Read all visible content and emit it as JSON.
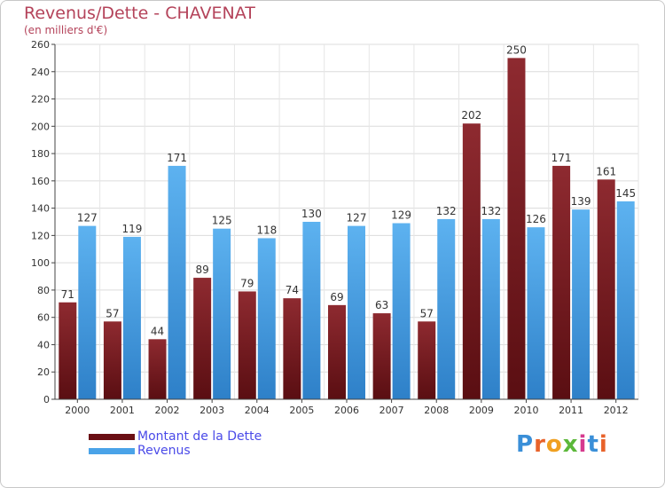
{
  "title": "Revenus/Dette - CHAVENAT",
  "subtitle": "(en milliers d'€)",
  "logo_text": "Proxiti",
  "legend": [
    {
      "name": "Montant de la Dette",
      "color": "#7a1a1e"
    },
    {
      "name": "Revenus",
      "color": "#4aa3e8"
    }
  ],
  "chart_data": {
    "type": "bar",
    "title": "Revenus/Dette - CHAVENAT",
    "subtitle": "(en milliers d'€)",
    "categories": [
      "2000",
      "2001",
      "2002",
      "2003",
      "2004",
      "2005",
      "2006",
      "2007",
      "2008",
      "2009",
      "2010",
      "2011",
      "2012"
    ],
    "series": [
      {
        "name": "Montant de la Dette",
        "color": "#7a1a1e",
        "values": [
          71,
          57,
          44,
          89,
          79,
          74,
          69,
          63,
          57,
          202,
          250,
          171,
          161
        ]
      },
      {
        "name": "Revenus",
        "color": "#4aa3e8",
        "values": [
          127,
          119,
          171,
          125,
          118,
          130,
          127,
          129,
          132,
          132,
          126,
          139,
          145
        ]
      }
    ],
    "ylim": [
      0,
      260
    ],
    "yticks": [
      0,
      20,
      40,
      60,
      80,
      100,
      120,
      140,
      160,
      180,
      200,
      220,
      240,
      260
    ],
    "grid": true,
    "legend_position": "bottom-left"
  }
}
